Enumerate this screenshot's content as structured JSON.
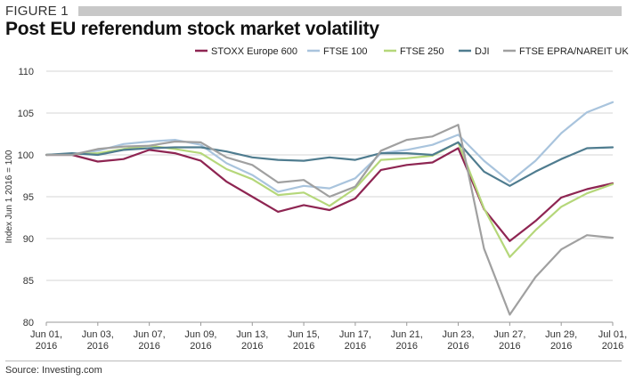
{
  "header": {
    "figure_label": "FIGURE 1",
    "title": "Post EU referendum stock market volatility"
  },
  "footer": {
    "source": "Source: Investing.com"
  },
  "chart_data": {
    "type": "line",
    "title": "Post EU referendum stock market volatility",
    "xlabel": "",
    "ylabel": "Index Jun 1 2016 = 100",
    "ylim": [
      80,
      110
    ],
    "yticks": [
      80,
      85,
      90,
      95,
      100,
      105,
      110
    ],
    "grid": "horizontal",
    "legend_position": "top",
    "x": [
      "Jun 01, 2016",
      "Jun 02, 2016",
      "Jun 03, 2016",
      "Jun 06, 2016",
      "Jun 07, 2016",
      "Jun 08, 2016",
      "Jun 09, 2016",
      "Jun 10, 2016",
      "Jun 13, 2016",
      "Jun 14, 2016",
      "Jun 15, 2016",
      "Jun 16, 2016",
      "Jun 17, 2016",
      "Jun 20, 2016",
      "Jun 21, 2016",
      "Jun 22, 2016",
      "Jun 23, 2016",
      "Jun 24, 2016",
      "Jun 27, 2016",
      "Jun 28, 2016",
      "Jun 29, 2016",
      "Jun 30, 2016",
      "Jul 01, 2016"
    ],
    "x_tick_labels": [
      {
        "line1": "Jun 01,",
        "line2": "2016"
      },
      {
        "line1": "Jun 03,",
        "line2": "2016"
      },
      {
        "line1": "Jun 07,",
        "line2": "2016"
      },
      {
        "line1": "Jun 09,",
        "line2": "2016"
      },
      {
        "line1": "Jun 13,",
        "line2": "2016"
      },
      {
        "line1": "Jun 15,",
        "line2": "2016"
      },
      {
        "line1": "Jun 17,",
        "line2": "2016"
      },
      {
        "line1": "Jun 21,",
        "line2": "2016"
      },
      {
        "line1": "Jun 23,",
        "line2": "2016"
      },
      {
        "line1": "Jun 27,",
        "line2": "2016"
      },
      {
        "line1": "Jun 29,",
        "line2": "2016"
      },
      {
        "line1": "Jul 01,",
        "line2": "2016"
      }
    ],
    "series": [
      {
        "name": "STOXX Europe 600",
        "color": "#8e2552",
        "values": [
          100,
          100,
          99.2,
          99.5,
          100.6,
          100.2,
          99.3,
          96.8,
          95.0,
          93.2,
          94.0,
          93.4,
          94.8,
          98.2,
          98.8,
          99.1,
          100.8,
          93.5,
          89.7,
          92.1,
          94.9,
          95.9,
          96.6
        ]
      },
      {
        "name": "FTSE 100",
        "color": "#a9c4dd",
        "values": [
          100,
          100.1,
          100.5,
          101.3,
          101.6,
          101.8,
          101.2,
          99.0,
          97.6,
          95.6,
          96.3,
          96.0,
          97.2,
          100.2,
          100.6,
          101.2,
          102.4,
          99.3,
          96.8,
          99.3,
          102.6,
          105.1,
          106.3
        ]
      },
      {
        "name": "FTSE 250",
        "color": "#b5d77a",
        "values": [
          100,
          100.1,
          100.2,
          100.7,
          101.1,
          100.7,
          100.2,
          98.3,
          97.1,
          95.2,
          95.5,
          93.9,
          96.0,
          99.4,
          99.6,
          99.9,
          101.5,
          93.6,
          87.8,
          91.0,
          93.8,
          95.4,
          96.5
        ]
      },
      {
        "name": "DJI",
        "color": "#4f7c8f",
        "values": [
          100,
          100.2,
          100.0,
          100.6,
          100.8,
          100.9,
          100.9,
          100.4,
          99.7,
          99.4,
          99.3,
          99.7,
          99.4,
          100.2,
          100.2,
          100.0,
          101.5,
          98.0,
          96.3,
          98.0,
          99.5,
          100.8,
          100.9
        ]
      },
      {
        "name": "FTSE EPRA/NAREIT UK",
        "color": "#a0a0a0",
        "values": [
          100,
          100.0,
          100.7,
          101.0,
          101.1,
          101.6,
          101.5,
          99.7,
          98.8,
          96.7,
          97.0,
          95.0,
          96.2,
          100.5,
          101.8,
          102.2,
          103.6,
          88.8,
          80.9,
          85.4,
          88.7,
          90.4,
          90.1
        ]
      }
    ]
  }
}
